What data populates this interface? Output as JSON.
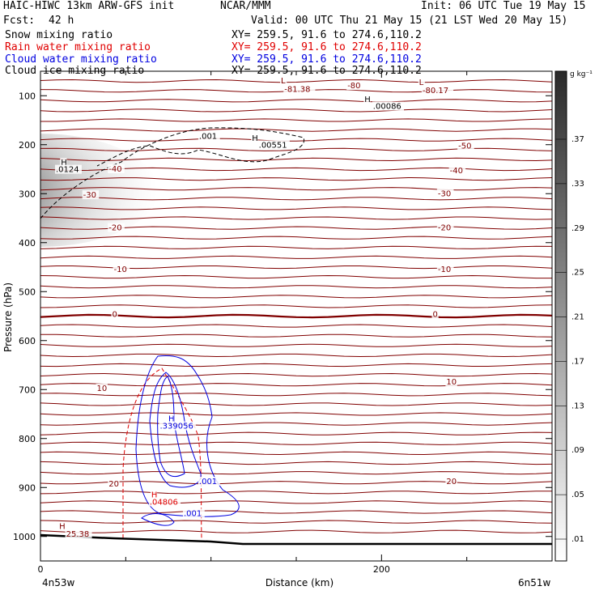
{
  "header": {
    "model": "HAIC-HIWC 13km ARW-GFS init",
    "center": "NCAR/MMM",
    "init": "Init: 06 UTC Tue 19 May 15",
    "fcst_label": "Fcst:",
    "fcst_value": "42 h",
    "valid": "Valid: 00 UTC Thu 21 May 15 (21 LST Wed 20 May 15)"
  },
  "fields": [
    {
      "label": "Snow mixing ratio",
      "xy": "XY= 259.5, 91.6 to 274.6,110.2",
      "color": "#000000"
    },
    {
      "label": "Rain water mixing ratio",
      "xy": "XY= 259.5, 91.6 to 274.6,110.2",
      "color": "#e00000"
    },
    {
      "label": "Cloud water mixing ratio",
      "xy": "XY= 259.5, 91.6 to 274.6,110.2",
      "color": "#0000e0"
    },
    {
      "label": "Cloud ice mixing ratio",
      "xy": "XY= 259.5, 91.6 to 274.6,110.2",
      "color": "#000000"
    }
  ],
  "colorbar": {
    "unit": "g kg⁻¹",
    "labels": [
      ".37",
      ".33",
      ".29",
      ".25",
      ".21",
      ".17",
      ".13",
      ".09",
      ".05",
      ".01"
    ]
  },
  "chart_data": {
    "type": "contour",
    "xlabel": "Distance (km)",
    "ylabel": "Pressure (hPa)",
    "xlim": [
      0,
      300
    ],
    "ylim": [
      1050,
      50
    ],
    "x_ticks": [
      0,
      200
    ],
    "y_ticks": [
      100,
      200,
      300,
      400,
      500,
      600,
      700,
      800,
      900,
      1000
    ],
    "left_endpoint": "4n53w",
    "right_endpoint": "6n51w",
    "temperature_contours": {
      "color": "#800000",
      "levels": [
        -80,
        -50,
        -40,
        -30,
        -20,
        -10,
        0,
        10,
        20
      ],
      "labels": [
        {
          "text": "-80",
          "x": 180,
          "p": 85,
          "color": "#800000"
        },
        {
          "text": "-81.38",
          "x": 143,
          "p": 92,
          "color": "#800000"
        },
        {
          "text": "-80.17",
          "x": 224,
          "p": 95,
          "color": "#800000"
        },
        {
          "text": "L",
          "x": 141,
          "p": 75,
          "color": "#800000"
        },
        {
          "text": "L",
          "x": 222,
          "p": 78,
          "color": "#800000"
        },
        {
          "text": "-50",
          "x": 245,
          "p": 208,
          "color": "#800000"
        },
        {
          "text": "-40",
          "x": 40,
          "p": 255,
          "color": "#800000"
        },
        {
          "text": "-40",
          "x": 240,
          "p": 258,
          "color": "#800000"
        },
        {
          "text": "-30",
          "x": 25,
          "p": 308,
          "color": "#800000"
        },
        {
          "text": "-30",
          "x": 233,
          "p": 305,
          "color": "#800000"
        },
        {
          "text": "-20",
          "x": 40,
          "p": 375,
          "color": "#800000"
        },
        {
          "text": "-20",
          "x": 233,
          "p": 375,
          "color": "#800000"
        },
        {
          "text": "-10",
          "x": 43,
          "p": 460,
          "color": "#800000"
        },
        {
          "text": "-10",
          "x": 233,
          "p": 460,
          "color": "#800000"
        },
        {
          "text": "0",
          "x": 42,
          "p": 552,
          "color": "#800000"
        },
        {
          "text": "0",
          "x": 230,
          "p": 552,
          "color": "#800000"
        },
        {
          "text": "10",
          "x": 33,
          "p": 703,
          "color": "#800000"
        },
        {
          "text": "10",
          "x": 238,
          "p": 690,
          "color": "#800000"
        },
        {
          "text": "20",
          "x": 40,
          "p": 898,
          "color": "#800000"
        },
        {
          "text": "20",
          "x": 238,
          "p": 893,
          "color": "#800000"
        },
        {
          "text": "H",
          "x": 11,
          "p": 985,
          "color": "#800000"
        },
        {
          "text": "25.38",
          "x": 15,
          "p": 1000,
          "color": "#800000"
        }
      ]
    },
    "snow_extrema": [
      {
        "text": "H",
        "x": 190,
        "p": 113,
        "color": "#000000"
      },
      {
        "text": ".00086",
        "x": 195,
        "p": 127,
        "color": "#000000"
      },
      {
        "text": ".001",
        "x": 93,
        "p": 188,
        "color": "#000000"
      },
      {
        "text": "H",
        "x": 124,
        "p": 192,
        "color": "#000000"
      },
      {
        "text": ".00551",
        "x": 128,
        "p": 206,
        "color": "#000000"
      },
      {
        "text": "H",
        "x": 12,
        "p": 242,
        "color": "#000000"
      },
      {
        "text": ".0124",
        "x": 9,
        "p": 256,
        "color": "#000000"
      }
    ],
    "cloud_water_extrema": [
      {
        "text": "H",
        "x": 75,
        "p": 765,
        "color": "#0000e0"
      },
      {
        "text": ".339056",
        "x": 70,
        "p": 780,
        "color": "#0000e0"
      },
      {
        "text": ".001",
        "x": 93,
        "p": 893,
        "color": "#0000e0"
      },
      {
        "text": ".001",
        "x": 84,
        "p": 958,
        "color": "#0000e0"
      }
    ],
    "rain_extrema": [
      {
        "text": "H",
        "x": 65,
        "p": 920,
        "color": "#e00000"
      },
      {
        "text": ".04806",
        "x": 64,
        "p": 935,
        "color": "#e00000"
      }
    ]
  }
}
